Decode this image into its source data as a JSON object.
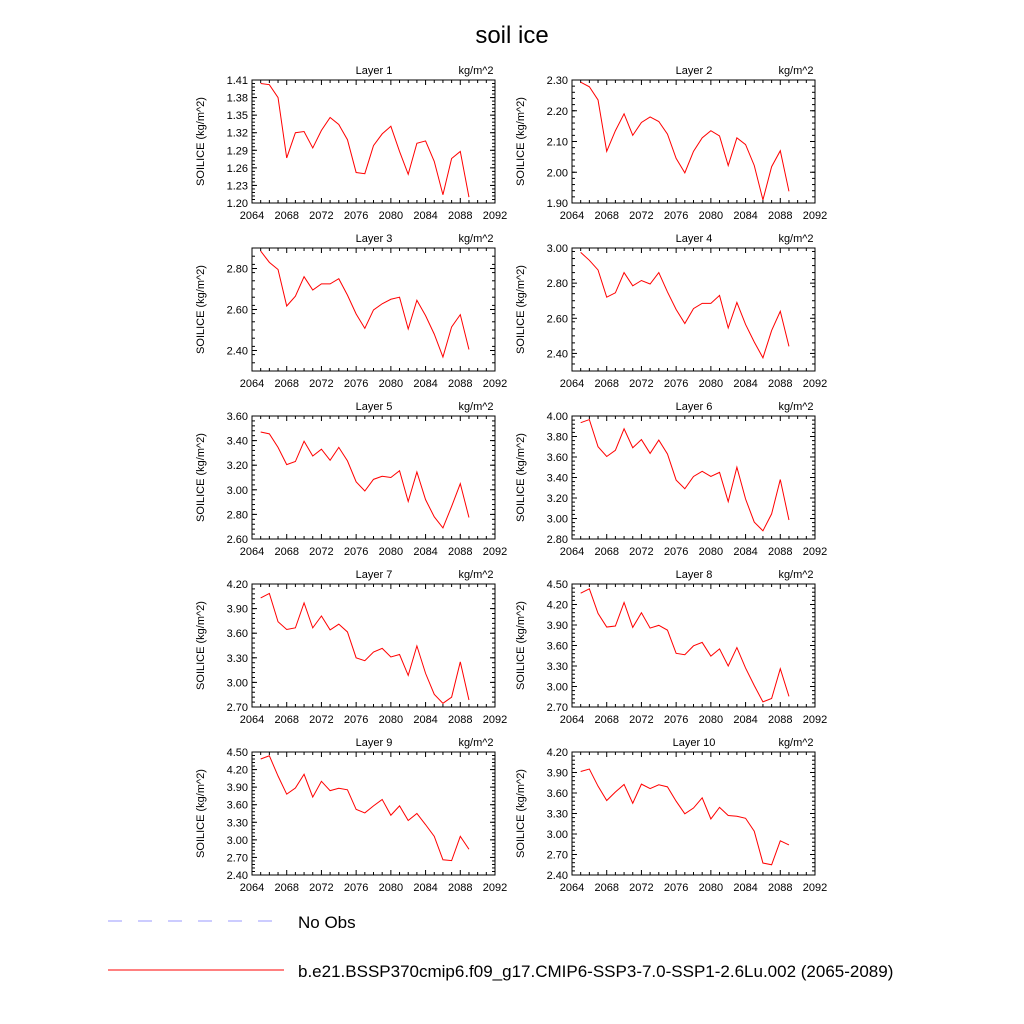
{
  "figure": {
    "title": "soil ice",
    "line_color": "#ff0000",
    "obs_color": "#9999ff"
  },
  "legend": {
    "obs_label": "No Obs",
    "model_label": "b.e21.BSSP370cmip6.f09_g17.CMIP6-SSP3-7.0-SSP1-2.6Lu.002 (2065-2089)"
  },
  "chart_data": [
    {
      "type": "line",
      "title": "Layer 1",
      "units": "kg/m^2",
      "ylabel": "SOILICE  (kg/m^2)",
      "xlim": [
        2064,
        2092
      ],
      "xticks": [
        2064,
        2068,
        2072,
        2076,
        2080,
        2084,
        2088,
        2092
      ],
      "ylim": [
        1.2,
        1.41
      ],
      "yticks": [
        "1.20",
        "1.23",
        "1.26",
        "1.29",
        "1.32",
        "1.35",
        "1.38",
        "1.41"
      ],
      "x": [
        2065,
        2066,
        2067,
        2068,
        2069,
        2070,
        2071,
        2072,
        2073,
        2074,
        2075,
        2076,
        2077,
        2078,
        2079,
        2080,
        2081,
        2082,
        2083,
        2084,
        2085,
        2086,
        2087,
        2088,
        2089
      ],
      "y": [
        1.404,
        1.402,
        1.38,
        1.277,
        1.32,
        1.322,
        1.294,
        1.324,
        1.346,
        1.334,
        1.308,
        1.252,
        1.25,
        1.298,
        1.318,
        1.331,
        1.288,
        1.249,
        1.302,
        1.306,
        1.271,
        1.214,
        1.276,
        1.288,
        1.21
      ]
    },
    {
      "type": "line",
      "title": "Layer 2",
      "units": "kg/m^2",
      "ylabel": "SOILICE  (kg/m^2)",
      "xlim": [
        2064,
        2092
      ],
      "xticks": [
        2064,
        2068,
        2072,
        2076,
        2080,
        2084,
        2088,
        2092
      ],
      "ylim": [
        1.9,
        2.3
      ],
      "yticks": [
        "1.90",
        "2.00",
        "2.10",
        "2.20",
        "2.30"
      ],
      "x": [
        2065,
        2066,
        2067,
        2068,
        2069,
        2070,
        2071,
        2072,
        2073,
        2074,
        2075,
        2076,
        2077,
        2078,
        2079,
        2080,
        2081,
        2082,
        2083,
        2084,
        2085,
        2086,
        2087,
        2088,
        2089
      ],
      "y": [
        2.293,
        2.278,
        2.235,
        2.068,
        2.135,
        2.19,
        2.12,
        2.162,
        2.18,
        2.165,
        2.124,
        2.045,
        1.998,
        2.068,
        2.112,
        2.135,
        2.118,
        2.022,
        2.112,
        2.09,
        2.022,
        1.91,
        2.018,
        2.07,
        1.938
      ]
    },
    {
      "type": "line",
      "title": "Layer 3",
      "units": "kg/m^2",
      "ylabel": "SOILICE  (kg/m^2)",
      "xlim": [
        2064,
        2092
      ],
      "xticks": [
        2064,
        2068,
        2072,
        2076,
        2080,
        2084,
        2088,
        2092
      ],
      "ylim": [
        2.3,
        2.9
      ],
      "yticks": [
        "2.40",
        "2.60",
        "2.80"
      ],
      "x": [
        2065,
        2066,
        2067,
        2068,
        2069,
        2070,
        2071,
        2072,
        2073,
        2074,
        2075,
        2076,
        2077,
        2078,
        2079,
        2080,
        2081,
        2082,
        2083,
        2084,
        2085,
        2086,
        2087,
        2088,
        2089
      ],
      "y": [
        2.885,
        2.83,
        2.795,
        2.617,
        2.665,
        2.76,
        2.695,
        2.725,
        2.725,
        2.75,
        2.67,
        2.578,
        2.508,
        2.598,
        2.628,
        2.65,
        2.66,
        2.505,
        2.645,
        2.57,
        2.48,
        2.368,
        2.515,
        2.575,
        2.405
      ]
    },
    {
      "type": "line",
      "title": "Layer 4",
      "units": "kg/m^2",
      "ylabel": "SOILICE  (kg/m^2)",
      "xlim": [
        2064,
        2092
      ],
      "xticks": [
        2064,
        2068,
        2072,
        2076,
        2080,
        2084,
        2088,
        2092
      ],
      "ylim": [
        2.3,
        3.0
      ],
      "yticks": [
        "2.40",
        "2.60",
        "2.80",
        "3.00"
      ],
      "x": [
        2065,
        2066,
        2067,
        2068,
        2069,
        2070,
        2071,
        2072,
        2073,
        2074,
        2075,
        2076,
        2077,
        2078,
        2079,
        2080,
        2081,
        2082,
        2083,
        2084,
        2085,
        2086,
        2087,
        2088,
        2089
      ],
      "y": [
        2.975,
        2.93,
        2.875,
        2.72,
        2.745,
        2.86,
        2.785,
        2.815,
        2.795,
        2.86,
        2.75,
        2.65,
        2.57,
        2.655,
        2.685,
        2.685,
        2.73,
        2.545,
        2.69,
        2.565,
        2.465,
        2.375,
        2.53,
        2.64,
        2.44
      ]
    },
    {
      "type": "line",
      "title": "Layer 5",
      "units": "kg/m^2",
      "ylabel": "SOILICE  (kg/m^2)",
      "xlim": [
        2064,
        2092
      ],
      "xticks": [
        2064,
        2068,
        2072,
        2076,
        2080,
        2084,
        2088,
        2092
      ],
      "ylim": [
        2.6,
        3.6
      ],
      "yticks": [
        "2.60",
        "2.80",
        "3.00",
        "3.20",
        "3.40",
        "3.60"
      ],
      "x": [
        2065,
        2066,
        2067,
        2068,
        2069,
        2070,
        2071,
        2072,
        2073,
        2074,
        2075,
        2076,
        2077,
        2078,
        2079,
        2080,
        2081,
        2082,
        2083,
        2084,
        2085,
        2086,
        2087,
        2088,
        2089
      ],
      "y": [
        3.47,
        3.455,
        3.345,
        3.205,
        3.23,
        3.395,
        3.275,
        3.33,
        3.24,
        3.345,
        3.235,
        3.065,
        2.99,
        3.085,
        3.11,
        3.1,
        3.155,
        2.905,
        3.145,
        2.92,
        2.78,
        2.69,
        2.865,
        3.05,
        2.775
      ]
    },
    {
      "type": "line",
      "title": "Layer 6",
      "units": "kg/m^2",
      "ylabel": "SOILICE  (kg/m^2)",
      "xlim": [
        2064,
        2092
      ],
      "xticks": [
        2064,
        2068,
        2072,
        2076,
        2080,
        2084,
        2088,
        2092
      ],
      "ylim": [
        2.8,
        4.0
      ],
      "yticks": [
        "2.80",
        "3.00",
        "3.20",
        "3.40",
        "3.60",
        "3.80",
        "4.00"
      ],
      "x": [
        2065,
        2066,
        2067,
        2068,
        2069,
        2070,
        2071,
        2072,
        2073,
        2074,
        2075,
        2076,
        2077,
        2078,
        2079,
        2080,
        2081,
        2082,
        2083,
        2084,
        2085,
        2086,
        2087,
        2088,
        2089
      ],
      "y": [
        3.935,
        3.965,
        3.7,
        3.605,
        3.665,
        3.875,
        3.69,
        3.77,
        3.635,
        3.765,
        3.63,
        3.375,
        3.29,
        3.41,
        3.46,
        3.41,
        3.45,
        3.165,
        3.5,
        3.19,
        2.965,
        2.88,
        3.045,
        3.38,
        2.985
      ]
    },
    {
      "type": "line",
      "title": "Layer 7",
      "units": "kg/m^2",
      "ylabel": "SOILICE  (kg/m^2)",
      "xlim": [
        2064,
        2092
      ],
      "xticks": [
        2064,
        2068,
        2072,
        2076,
        2080,
        2084,
        2088,
        2092
      ],
      "ylim": [
        2.7,
        4.2
      ],
      "yticks": [
        "2.70",
        "3.00",
        "3.30",
        "3.60",
        "3.90",
        "4.20"
      ],
      "x": [
        2065,
        2066,
        2067,
        2068,
        2069,
        2070,
        2071,
        2072,
        2073,
        2074,
        2075,
        2076,
        2077,
        2078,
        2079,
        2080,
        2081,
        2082,
        2083,
        2084,
        2085,
        2086,
        2087,
        2088,
        2089
      ],
      "y": [
        4.03,
        4.085,
        3.74,
        3.645,
        3.665,
        3.97,
        3.665,
        3.81,
        3.64,
        3.71,
        3.615,
        3.3,
        3.265,
        3.37,
        3.415,
        3.31,
        3.34,
        3.085,
        3.445,
        3.11,
        2.855,
        2.745,
        2.82,
        3.25,
        2.785
      ]
    },
    {
      "type": "line",
      "title": "Layer 8",
      "units": "kg/m^2",
      "ylabel": "SOILICE  (kg/m^2)",
      "xlim": [
        2064,
        2092
      ],
      "xticks": [
        2064,
        2068,
        2072,
        2076,
        2080,
        2084,
        2088,
        2092
      ],
      "ylim": [
        2.7,
        4.5
      ],
      "yticks": [
        "2.70",
        "3.00",
        "3.30",
        "3.60",
        "3.90",
        "4.20",
        "4.50"
      ],
      "x": [
        2065,
        2066,
        2067,
        2068,
        2069,
        2070,
        2071,
        2072,
        2073,
        2074,
        2075,
        2076,
        2077,
        2078,
        2079,
        2080,
        2081,
        2082,
        2083,
        2084,
        2085,
        2086,
        2087,
        2088,
        2089
      ],
      "y": [
        4.365,
        4.43,
        4.07,
        3.87,
        3.885,
        4.23,
        3.865,
        4.08,
        3.855,
        3.895,
        3.825,
        3.485,
        3.465,
        3.595,
        3.645,
        3.445,
        3.55,
        3.3,
        3.57,
        3.27,
        3.015,
        2.775,
        2.825,
        3.26,
        2.855
      ]
    },
    {
      "type": "line",
      "title": "Layer 9",
      "units": "kg/m^2",
      "ylabel": "SOILICE  (kg/m^2)",
      "xlim": [
        2064,
        2092
      ],
      "xticks": [
        2064,
        2068,
        2072,
        2076,
        2080,
        2084,
        2088,
        2092
      ],
      "ylim": [
        2.4,
        4.5
      ],
      "yticks": [
        "2.40",
        "2.70",
        "3.00",
        "3.30",
        "3.60",
        "3.90",
        "4.20",
        "4.50"
      ],
      "x": [
        2065,
        2066,
        2067,
        2068,
        2069,
        2070,
        2071,
        2072,
        2073,
        2074,
        2075,
        2076,
        2077,
        2078,
        2079,
        2080,
        2081,
        2082,
        2083,
        2084,
        2085,
        2086,
        2087,
        2088,
        2089
      ],
      "y": [
        4.38,
        4.435,
        4.09,
        3.78,
        3.885,
        4.12,
        3.73,
        4.0,
        3.84,
        3.88,
        3.855,
        3.52,
        3.46,
        3.58,
        3.69,
        3.42,
        3.58,
        3.33,
        3.45,
        3.26,
        3.06,
        2.66,
        2.645,
        3.06,
        2.84
      ]
    },
    {
      "type": "line",
      "title": "Layer 10",
      "units": "kg/m^2",
      "ylabel": "SOILICE  (kg/m^2)",
      "xlim": [
        2064,
        2092
      ],
      "xticks": [
        2064,
        2068,
        2072,
        2076,
        2080,
        2084,
        2088,
        2092
      ],
      "ylim": [
        2.4,
        4.2
      ],
      "yticks": [
        "2.40",
        "2.70",
        "3.00",
        "3.30",
        "3.60",
        "3.90",
        "4.20"
      ],
      "x": [
        2065,
        2066,
        2067,
        2068,
        2069,
        2070,
        2071,
        2072,
        2073,
        2074,
        2075,
        2076,
        2077,
        2078,
        2079,
        2080,
        2081,
        2082,
        2083,
        2084,
        2085,
        2086,
        2087,
        2088,
        2089
      ],
      "y": [
        3.915,
        3.95,
        3.7,
        3.49,
        3.615,
        3.725,
        3.45,
        3.73,
        3.665,
        3.72,
        3.69,
        3.48,
        3.295,
        3.38,
        3.53,
        3.22,
        3.39,
        3.27,
        3.26,
        3.23,
        3.04,
        2.575,
        2.55,
        2.9,
        2.84
      ]
    }
  ]
}
